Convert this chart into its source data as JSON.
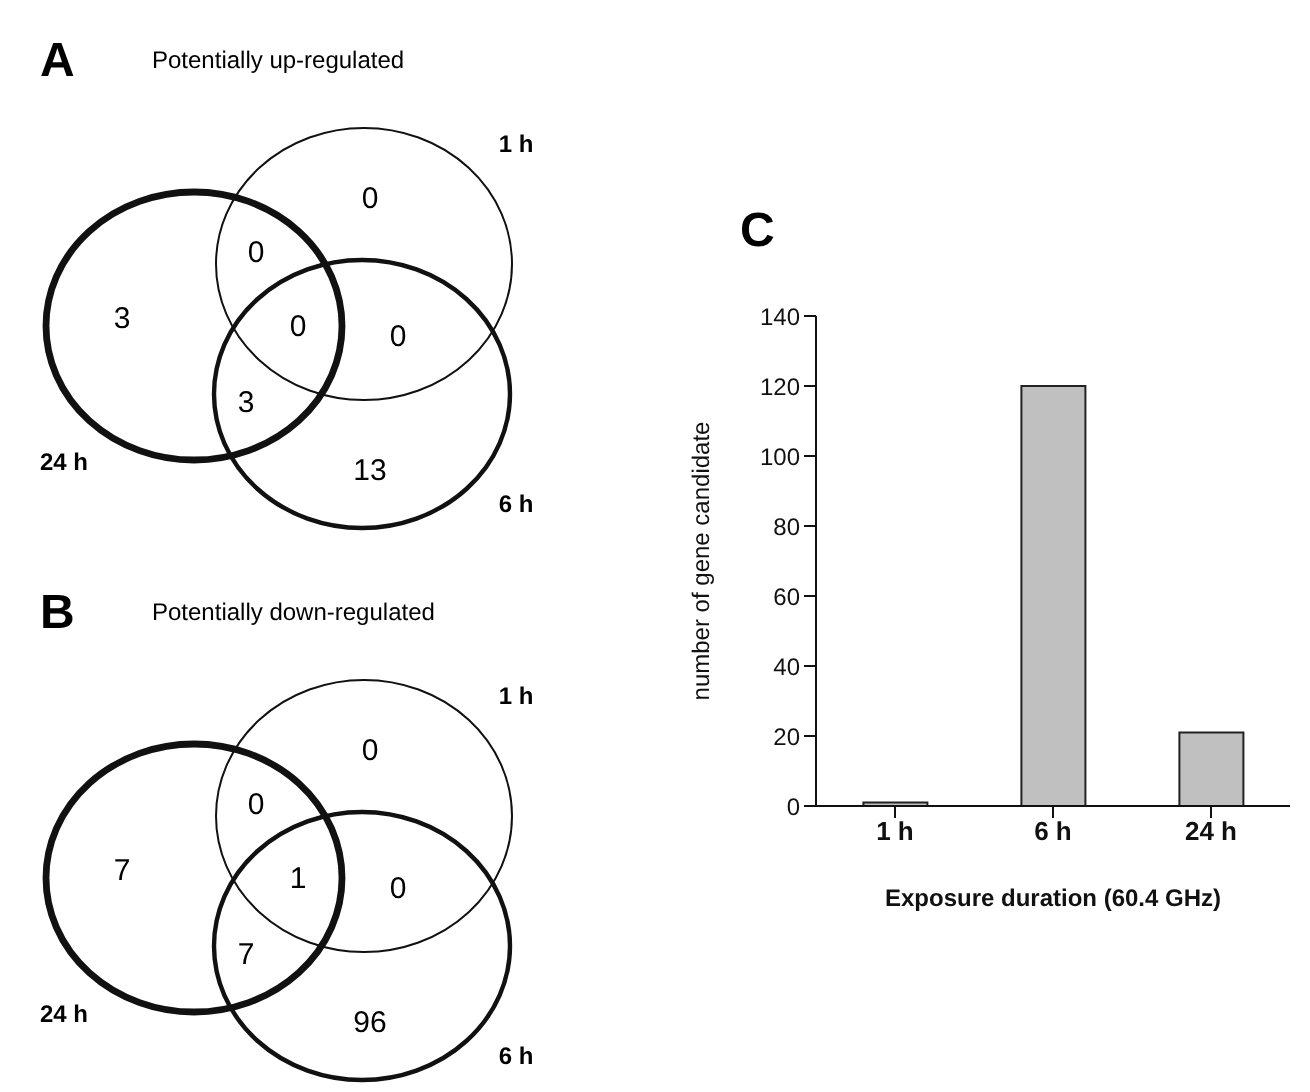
{
  "chart_data": [
    {
      "type": "other",
      "title": "Potentially up-regulated",
      "annotations": [
        "A",
        "1 h",
        "6 h",
        "24 h",
        "0",
        "13",
        "3",
        "0",
        "0",
        "3",
        "0"
      ]
    },
    {
      "type": "other",
      "title": "Potentially down-regulated",
      "annotations": [
        "B",
        "1 h",
        "6 h",
        "24 h",
        "0",
        "96",
        "7",
        "0",
        "0",
        "7",
        "1"
      ]
    },
    {
      "type": "bar",
      "annotations": [
        "C"
      ],
      "categories": [
        "1 h",
        "6 h",
        "24 h"
      ],
      "values": [
        1,
        120,
        21
      ],
      "color": "#c0c0c0",
      "ylim": [
        0,
        140
      ],
      "yticks": [
        0,
        20,
        40,
        60,
        80,
        100,
        120,
        140
      ],
      "ylabel": "number of gene candidate",
      "xlabel": "Exposure duration (60.4 GHz)",
      "grid": false,
      "legend": false
    }
  ]
}
